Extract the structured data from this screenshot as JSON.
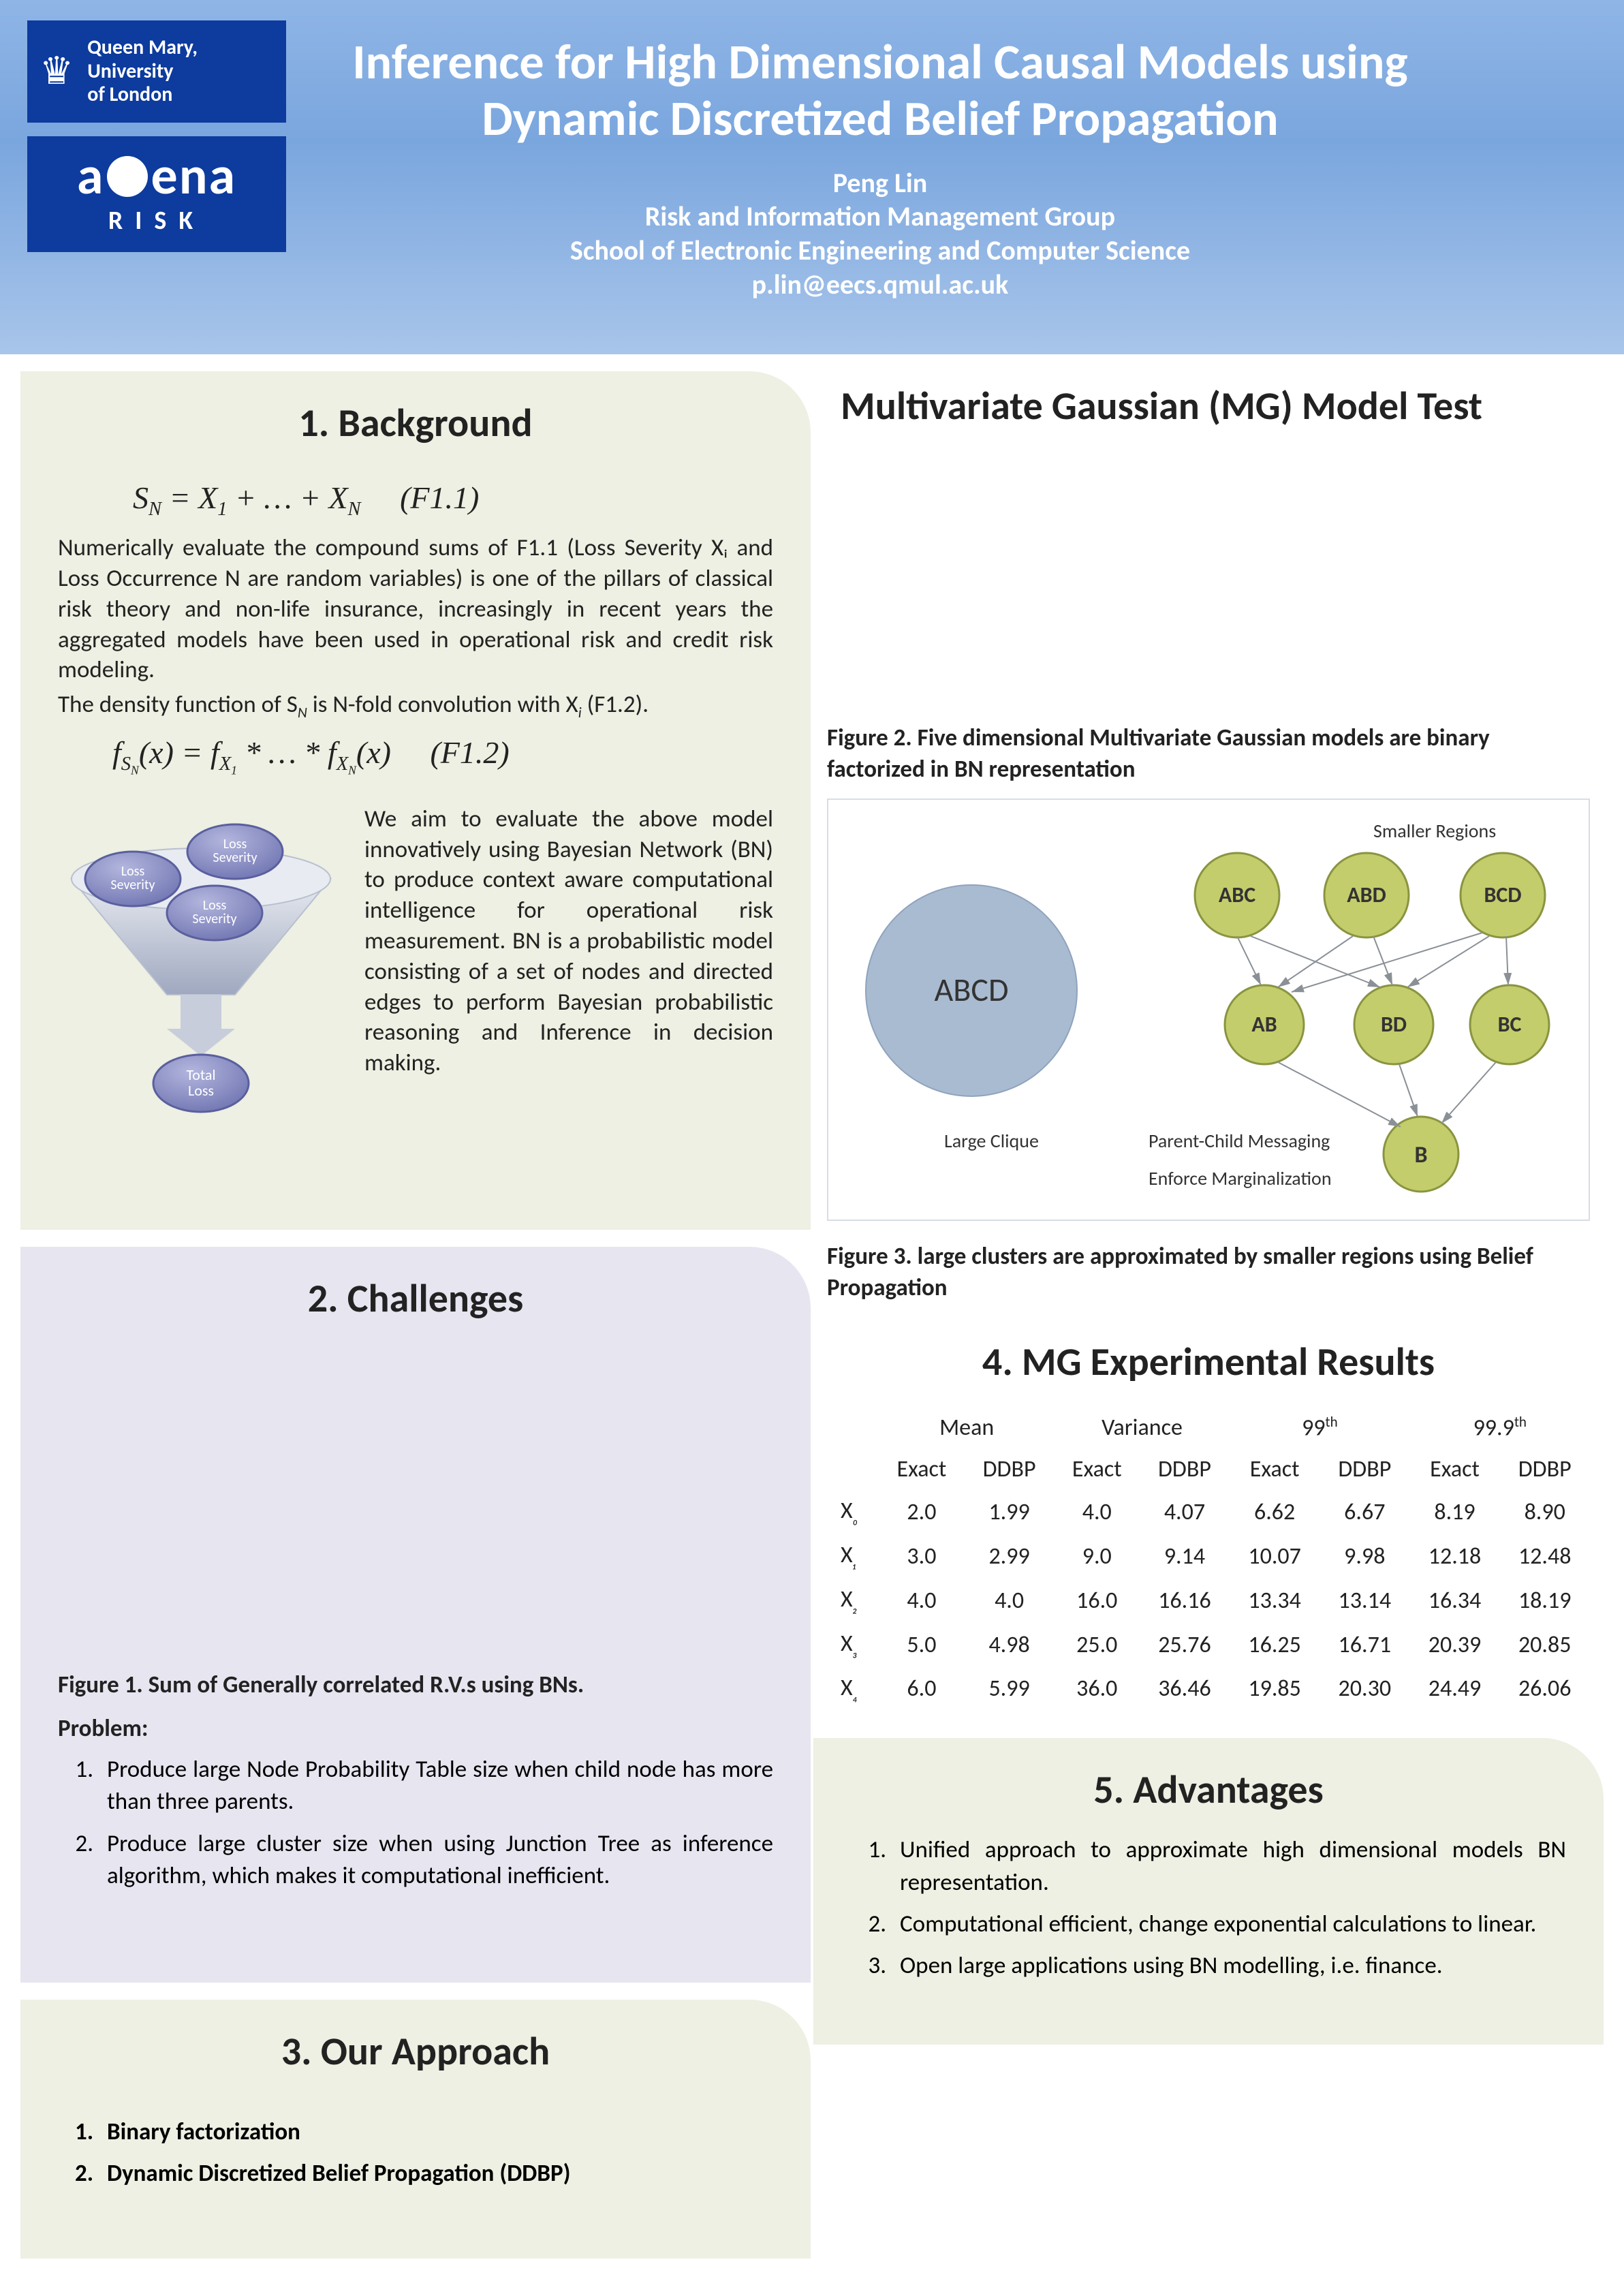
{
  "header": {
    "logo1_line1": "Queen Mary,",
    "logo1_line2": "University",
    "logo1_line3": "of London",
    "logo2_top": "agena",
    "logo2_bottom": "RISK",
    "title_l1": "Inference for High Dimensional Causal Models using",
    "title_l2": "Dynamic Discretized Belief Propagation",
    "author": "Peng Lin",
    "aff1": "Risk and Information Management Group",
    "aff2": "School of Electronic Engineering and Computer Science",
    "email": "p.lin@eecs.qmul.ac.uk",
    "bg_grad_top": "#8fb5e6",
    "bg_grad_bottom": "#a8c5ea"
  },
  "sec1": {
    "title": "1. Background",
    "formula1": "S_N = X_1 + … + X_N    (F1.1)",
    "para1": "Numerically evaluate the compound sums of F1.1 (Loss Severity Xᵢ and Loss Occurrence N are random variables) is one of the pillars of classical risk theory and non-life insurance, increasingly in recent years the aggregated models have been used in operational risk and credit risk modeling.",
    "para1b": "The density function of S_N is N-fold convolution with Xᵢ (F1.2).",
    "formula2": "f_{S_N}(x) = f_{X_1} * … * f_{X_N}(x)    (F1.2)",
    "para2": "We aim to evaluate the above model innovatively using Bayesian Network (BN) to produce context aware computational intelligence for operational risk measurement. BN is a probabilistic model consisting of a set of nodes and directed edges to perform Bayesian probabilistic reasoning and Inference in decision making.",
    "funnel": {
      "ovals": [
        "Loss Severity",
        "Loss Severity",
        "Loss Severity"
      ],
      "bottom": "Total Loss",
      "oval_fill": "#8a8fc4",
      "oval_stroke": "#5a5f9e",
      "funnel_fill_top": "#e8ebf1",
      "funnel_fill_bottom": "#bfc6d6"
    }
  },
  "sec2": {
    "title": "2. Challenges",
    "fig1_caption": "Figure 1. Sum of Generally correlated R.V.s using BNs.",
    "problem_label": "Problem:",
    "items": [
      "Produce large Node Probability Table size when child node has more than three parents.",
      "Produce large cluster size when using Junction Tree as inference algorithm, which makes it computational inefficient."
    ]
  },
  "sec3": {
    "title": "3. Our Approach",
    "items": [
      "Binary factorization",
      "Dynamic Discretized Belief Propagation (DDBP)"
    ]
  },
  "right_title": "Multivariate Gaussian (MG) Model Test",
  "fig2_caption": "Figure 2. Five dimensional Multivariate Gaussian models are binary factorized in BN representation",
  "fig3": {
    "caption": "Figure 3. large clusters are approximated by smaller regions using Belief Propagation",
    "large_label": "ABCD",
    "large_sub": "Large Clique",
    "top_nodes": [
      "ABC",
      "ABD",
      "BCD"
    ],
    "mid_nodes": [
      "AB",
      "BD",
      "BC"
    ],
    "bot_node": "B",
    "label_top": "Smaller Regions",
    "label_mid": "Parent-Child Messaging",
    "label_bot": "Enforce Marginalization",
    "node_fill": "#c4cd6b",
    "node_stroke": "#8a9440",
    "large_fill": "#a9bbd1",
    "edge_color": "#8a9096"
  },
  "sec4": {
    "title": "4. MG Experimental Results",
    "groups": [
      "Mean",
      "Variance",
      "99th",
      "99.9th"
    ],
    "subcols": [
      "Exact",
      "DDBP",
      "Exact",
      "DDBP",
      "Exact",
      "DDBP",
      "Exact",
      "DDBP"
    ],
    "rows": [
      {
        "label": "X₀",
        "v": [
          "2.0",
          "1.99",
          "4.0",
          "4.07",
          "6.62",
          "6.67",
          "8.19",
          "8.90"
        ]
      },
      {
        "label": "X₁",
        "v": [
          "3.0",
          "2.99",
          "9.0",
          "9.14",
          "10.07",
          "9.98",
          "12.18",
          "12.48"
        ]
      },
      {
        "label": "X₂",
        "v": [
          "4.0",
          "4.0",
          "16.0",
          "16.16",
          "13.34",
          "13.14",
          "16.34",
          "18.19"
        ]
      },
      {
        "label": "X₃",
        "v": [
          "5.0",
          "4.98",
          "25.0",
          "25.76",
          "16.25",
          "16.71",
          "20.39",
          "20.85"
        ]
      },
      {
        "label": "X₄",
        "v": [
          "6.0",
          "5.99",
          "36.0",
          "36.46",
          "19.85",
          "20.30",
          "24.49",
          "26.06"
        ]
      }
    ]
  },
  "sec5": {
    "title": "5. Advantages",
    "items": [
      "Unified approach to approximate high dimensional models BN representation.",
      "Computational efficient, change exponential calculations to linear.",
      "Open large applications using BN modelling,  i.e. finance."
    ]
  },
  "colors": {
    "panel_green": "#edf0e2",
    "panel_lav": "#e7e5f0",
    "text": "#222222"
  }
}
